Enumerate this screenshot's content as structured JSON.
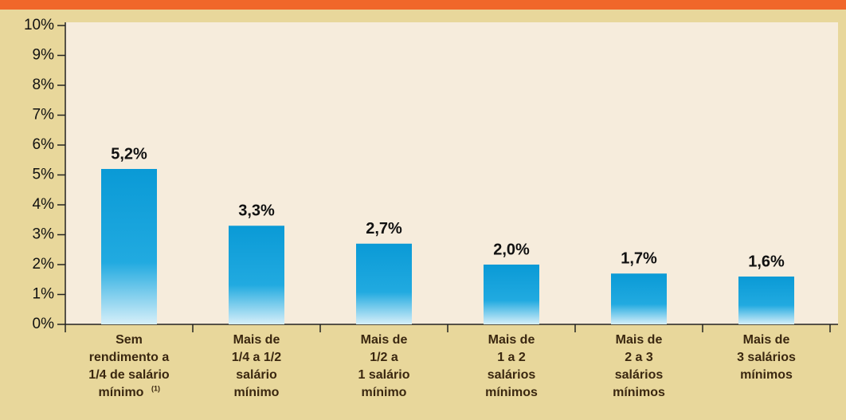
{
  "chart_data": {
    "type": "bar",
    "categories": [
      [
        "Sem",
        "rendimento a",
        "1/4 de salário",
        "mínimo"
      ],
      [
        "Mais de",
        "1/4  a 1/2",
        "salário",
        "mínimo"
      ],
      [
        "Mais de",
        "1/2  a",
        "1 salário",
        "mínimo"
      ],
      [
        "Mais de",
        "1 a 2",
        "salários",
        "mínimos"
      ],
      [
        "Mais de",
        "2 a 3",
        "salários",
        "mínimos"
      ],
      [
        "Mais de",
        "3 salários",
        "mínimos"
      ]
    ],
    "category_footnotes": [
      "(1)",
      null,
      null,
      null,
      null,
      null
    ],
    "values": [
      5.2,
      3.3,
      2.7,
      2.0,
      1.7,
      1.6
    ],
    "value_labels": [
      "5,2%",
      "3,3%",
      "2,7%",
      "2,0%",
      "1,7%",
      "1,6%"
    ],
    "color": "#0a9ad6",
    "ylim": [
      0,
      10
    ],
    "yticks": [
      {
        "value": 0,
        "label": "0%"
      },
      {
        "value": 1,
        "label": "1%"
      },
      {
        "value": 2,
        "label": "2%"
      },
      {
        "value": 3,
        "label": "3%"
      },
      {
        "value": 4,
        "label": "4%"
      },
      {
        "value": 5,
        "label": "5%"
      },
      {
        "value": 6,
        "label": "6%"
      },
      {
        "value": 7,
        "label": "7%"
      },
      {
        "value": 8,
        "label": "8%"
      },
      {
        "value": 9,
        "label": "9%"
      },
      {
        "value": 10,
        "label": "10%"
      }
    ]
  }
}
